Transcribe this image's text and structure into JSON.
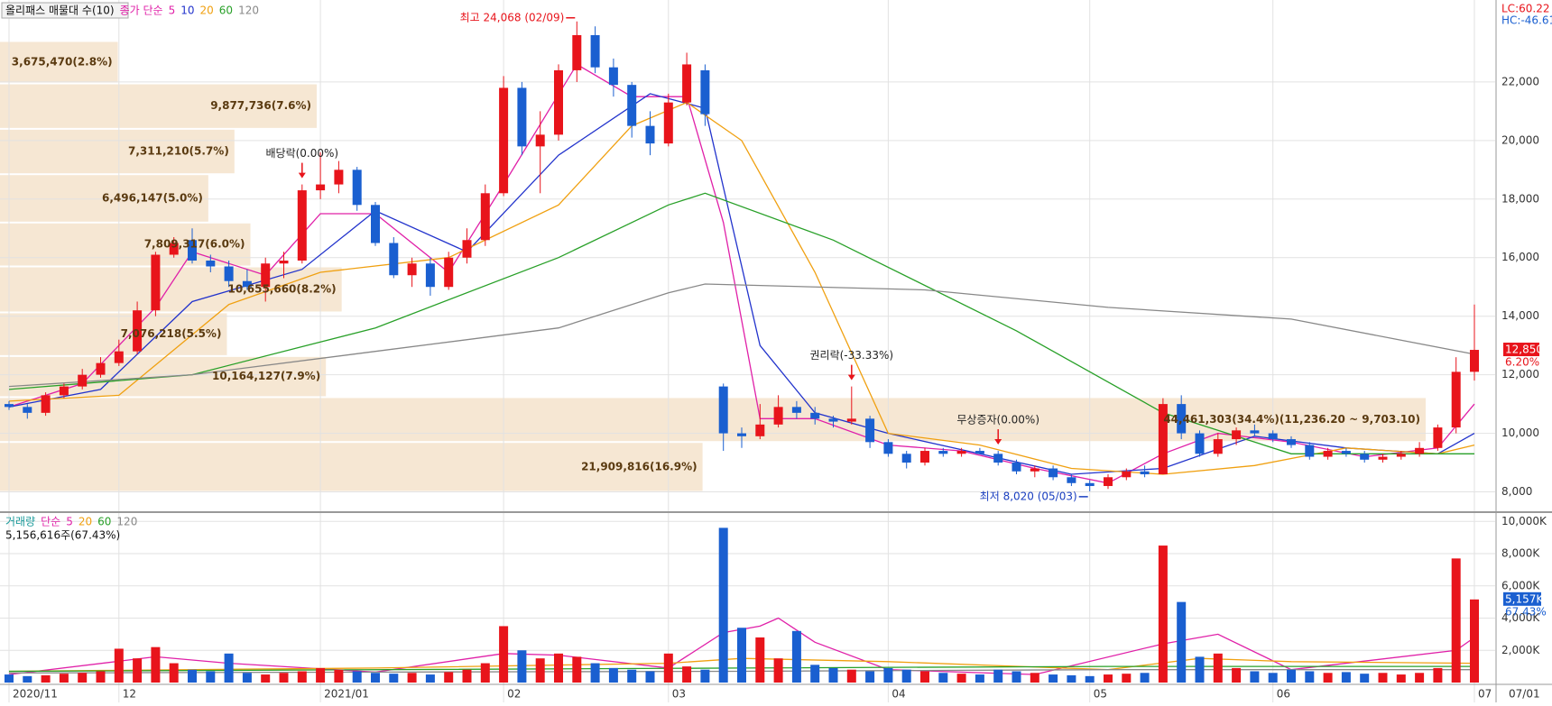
{
  "chart_data": [
    {
      "type": "candlestick",
      "title": "올리패스 매물대 수(10)",
      "legend_prefix": "종가 단순",
      "up_color": "#e8141b",
      "down_color": "#1a5fd0",
      "ylim": [
        7400,
        24800
      ],
      "yticks": [
        {
          "value": 8000,
          "label": "8,000"
        },
        {
          "value": 10000,
          "label": "10,000"
        },
        {
          "value": 12000,
          "label": "12,000"
        },
        {
          "value": 14000,
          "label": "14,000"
        },
        {
          "value": 16000,
          "label": "16,000"
        },
        {
          "value": 18000,
          "label": "18,000"
        },
        {
          "value": 20000,
          "label": "20,000"
        },
        {
          "value": 22000,
          "label": "22,000"
        }
      ],
      "open": [
        11000,
        10900,
        10700,
        11300,
        11600,
        12000,
        12400,
        12800,
        14200,
        16100,
        16600,
        15900,
        15700,
        15200,
        15000,
        15800,
        15900,
        18300,
        18500,
        19000,
        17800,
        16500,
        15400,
        15800,
        15000,
        16000,
        16600,
        18200,
        21800,
        19800,
        20200,
        22400,
        23600,
        22500,
        21900,
        20500,
        19900,
        21300,
        22400,
        11600,
        10000,
        9900,
        10300,
        10900,
        10700,
        10500,
        10400,
        10500,
        9700,
        9300,
        9000,
        9400,
        9300,
        9400,
        9300,
        9000,
        8700,
        8800,
        8500,
        8300,
        8200,
        8500,
        8700,
        8600,
        11000,
        10000,
        9300,
        9800,
        10100,
        10000,
        9800,
        9600,
        9200,
        9400,
        9300,
        9100,
        9200,
        9300,
        9500,
        10200,
        12100
      ],
      "high": [
        11100,
        11000,
        11400,
        11700,
        12200,
        12600,
        13200,
        14500,
        16200,
        16700,
        17000,
        16100,
        15900,
        15600,
        16000,
        16200,
        18500,
        19600,
        19300,
        19100,
        17900,
        16700,
        16000,
        16000,
        16200,
        17000,
        18500,
        22200,
        22000,
        21000,
        22600,
        24068,
        23900,
        22800,
        22000,
        21000,
        21600,
        23000,
        22600,
        11700,
        10200,
        11000,
        11300,
        11100,
        10900,
        10600,
        11600,
        10600,
        9800,
        9400,
        9500,
        9500,
        9500,
        9500,
        9400,
        9100,
        8900,
        8900,
        8600,
        8400,
        8600,
        8800,
        8900,
        11200,
        11300,
        10100,
        10000,
        10200,
        10300,
        10100,
        9900,
        9700,
        9500,
        9500,
        9400,
        9300,
        9400,
        9700,
        10300,
        12600,
        14400
      ],
      "low": [
        10800,
        10500,
        10600,
        11200,
        11500,
        11900,
        12300,
        12700,
        14000,
        16000,
        15800,
        15500,
        15000,
        14900,
        14500,
        15300,
        15800,
        18000,
        18200,
        17600,
        16400,
        15300,
        15000,
        14700,
        14900,
        15800,
        16400,
        18100,
        19500,
        18200,
        20000,
        22000,
        22300,
        21500,
        20100,
        19500,
        19800,
        21200,
        20500,
        9400,
        9500,
        9800,
        10200,
        10500,
        10300,
        10200,
        10300,
        9500,
        9200,
        8800,
        8900,
        9200,
        9200,
        9300,
        8900,
        8600,
        8500,
        8400,
        8200,
        8020,
        8100,
        8400,
        8500,
        8600,
        9800,
        9200,
        9200,
        9600,
        9900,
        9700,
        9500,
        9100,
        9100,
        9200,
        9000,
        9000,
        9100,
        9200,
        9400,
        10000,
        11800
      ],
      "close": [
        10900,
        10700,
        11300,
        11600,
        12000,
        12400,
        12800,
        14200,
        16100,
        16500,
        15900,
        15700,
        15200,
        15000,
        15800,
        15900,
        18300,
        18500,
        19000,
        17800,
        16500,
        15400,
        15800,
        15000,
        16000,
        16600,
        18200,
        21800,
        19800,
        20200,
        22400,
        23600,
        22500,
        21900,
        20500,
        19900,
        21300,
        22600,
        20900,
        10000,
        9900,
        10300,
        10900,
        10700,
        10500,
        10400,
        10500,
        9700,
        9300,
        9000,
        9400,
        9300,
        9400,
        9300,
        9000,
        8700,
        8800,
        8500,
        8300,
        8200,
        8500,
        8700,
        8600,
        11000,
        10000,
        9300,
        9800,
        10100,
        10000,
        9800,
        9600,
        9200,
        9400,
        9300,
        9100,
        9200,
        9300,
        9500,
        10200,
        12100,
        12850
      ],
      "series": [
        {
          "name": "5",
          "color": "#e020a8",
          "x": [
            0,
            4,
            8,
            10,
            14,
            17,
            20,
            24,
            27,
            31,
            34,
            37,
            39,
            41,
            44,
            48,
            52,
            56,
            60,
            63,
            66,
            70,
            74,
            78,
            80
          ],
          "values": [
            10900,
            11700,
            14300,
            16200,
            15400,
            17500,
            17500,
            15500,
            18500,
            22600,
            21500,
            21500,
            17200,
            10500,
            10500,
            9600,
            9400,
            8800,
            8300,
            9300,
            10000,
            9700,
            9200,
            9500,
            11000
          ]
        },
        {
          "name": "10",
          "color": "#2233cc",
          "x": [
            0,
            5,
            10,
            16,
            20,
            25,
            30,
            35,
            38,
            41,
            44,
            48,
            53,
            58,
            63,
            68,
            73,
            78,
            80
          ],
          "values": [
            10900,
            11500,
            14500,
            15600,
            17600,
            16200,
            19500,
            21600,
            21100,
            13000,
            10700,
            10000,
            9300,
            8600,
            8800,
            9900,
            9500,
            9300,
            10000
          ]
        },
        {
          "name": "20",
          "color": "#f0a010",
          "x": [
            0,
            6,
            12,
            17,
            24,
            30,
            34,
            37,
            40,
            44,
            48,
            53,
            58,
            63,
            68,
            73,
            78,
            80
          ],
          "values": [
            11100,
            11300,
            14400,
            15500,
            16000,
            17800,
            20500,
            21300,
            20000,
            15500,
            10000,
            9600,
            8800,
            8600,
            8900,
            9500,
            9300,
            9600
          ]
        },
        {
          "name": "60",
          "color": "#28a028",
          "x": [
            0,
            10,
            20,
            30,
            36,
            38,
            45,
            55,
            63,
            70,
            75,
            80
          ],
          "values": [
            11500,
            12000,
            13600,
            16000,
            17800,
            18200,
            16600,
            13500,
            10700,
            9300,
            9300,
            9300
          ]
        },
        {
          "name": "120",
          "color": "#888888",
          "x": [
            0,
            10,
            20,
            30,
            36,
            38,
            50,
            60,
            70,
            80
          ],
          "values": [
            11600,
            12000,
            12800,
            13600,
            14800,
            15100,
            14900,
            14300,
            13900,
            12700
          ]
        }
      ],
      "volume_profile": [
        {
          "high": 23400,
          "low": 21950,
          "volume": 3675470,
          "pct": 2.8,
          "label": "3,675,470(2.8%)"
        },
        {
          "high": 21950,
          "low": 20400,
          "volume": 9877736,
          "pct": 7.6,
          "label": "9,877,736(7.6%)"
        },
        {
          "high": 20400,
          "low": 18850,
          "volume": 7311210,
          "pct": 5.7,
          "label": "7,311,210(5.7%)"
        },
        {
          "high": 18850,
          "low": 17200,
          "volume": 6496147,
          "pct": 5.0,
          "label": "6,496,147(5.0%)"
        },
        {
          "high": 17200,
          "low": 15700,
          "volume": 7809317,
          "pct": 6.0,
          "label": "7,809,317(6.0%)"
        },
        {
          "high": 15700,
          "low": 14130,
          "volume": 10655660,
          "pct": 8.2,
          "label": "10,655,660(8.2%)"
        },
        {
          "high": 14130,
          "low": 12640,
          "volume": 7076218,
          "pct": 5.5,
          "label": "7,076,218(5.5%)"
        },
        {
          "high": 12640,
          "low": 11236.2,
          "volume": 10164127,
          "pct": 7.9,
          "label": "10,164,127(7.9%)"
        },
        {
          "high": 11236.2,
          "low": 9703.1,
          "volume": 44461303,
          "pct": 34.4,
          "label": "44,461,303(34.4%)(11,236.20 ~ 9,703.10)"
        },
        {
          "high": 9703.1,
          "low": 8000,
          "volume": 21909816,
          "pct": 16.9,
          "label": "21,909,816(16.9%)"
        }
      ],
      "events": [
        {
          "text": "배당락(0.00%)",
          "x": 16
        },
        {
          "text": "권리락(-33.33%)",
          "x": 46
        },
        {
          "text": "무상증자(0.00%)",
          "x": 54
        }
      ],
      "high_mark": {
        "text": "최고 24,068 (02/09)",
        "x": 31,
        "value": 24068
      },
      "low_mark": {
        "text": "최저 8,020 (05/03)",
        "x": 59,
        "value": 8020
      },
      "last_price": {
        "value": 12850,
        "label": "12,850",
        "change": 6.2,
        "change_label": "6.20%"
      },
      "lc": "LC:60.22",
      "hc": "HC:-46.61"
    },
    {
      "type": "bar",
      "legend_title": "거래량",
      "legend_prefix": "단순",
      "info": "5,156,616주(67.43%)",
      "date_label": "07/01",
      "categories": [
        "2020/11",
        null,
        null,
        null,
        null,
        null,
        "12",
        null,
        null,
        null,
        null,
        null,
        null,
        null,
        null,
        null,
        null,
        "2021/01",
        null,
        null,
        null,
        null,
        null,
        null,
        null,
        null,
        null,
        "02",
        null,
        null,
        null,
        null,
        null,
        null,
        null,
        null,
        "03",
        null,
        null,
        null,
        null,
        null,
        null,
        null,
        null,
        null,
        null,
        null,
        "04",
        null,
        null,
        null,
        null,
        null,
        null,
        null,
        null,
        null,
        null,
        "05",
        null,
        null,
        null,
        null,
        null,
        null,
        null,
        null,
        null,
        "06",
        null,
        null,
        null,
        null,
        null,
        null,
        null,
        null,
        null,
        null,
        "07"
      ],
      "values": [
        500,
        400,
        450,
        550,
        600,
        700,
        2100,
        1500,
        2200,
        1200,
        800,
        700,
        1800,
        600,
        500,
        600,
        700,
        900,
        800,
        700,
        600,
        550,
        600,
        500,
        650,
        800,
        1200,
        3500,
        2000,
        1500,
        1800,
        1600,
        1200,
        900,
        800,
        700,
        1800,
        1000,
        800,
        9600,
        3400,
        2800,
        1500,
        3200,
        1100,
        900,
        800,
        700,
        900,
        800,
        700,
        600,
        550,
        500,
        800,
        700,
        600,
        500,
        450,
        400,
        500,
        550,
        600,
        8500,
        5000,
        1600,
        1800,
        900,
        700,
        600,
        800,
        700,
        600,
        650,
        550,
        600,
        500,
        600,
        900,
        7700,
        5157
      ],
      "ylim": [
        0,
        10350
      ],
      "yticks": [
        {
          "value": 2000,
          "label": "2,000K"
        },
        {
          "value": 4000,
          "label": "4,000K"
        },
        {
          "value": 6000,
          "label": "6,000K"
        },
        {
          "value": 8000,
          "label": "8,000K"
        },
        {
          "value": 10000,
          "label": "10,000K"
        }
      ],
      "series": [
        {
          "name": "5",
          "color": "#e020a8",
          "x": [
            0,
            8,
            12,
            20,
            27,
            30,
            36,
            39,
            41,
            42,
            44,
            48,
            56,
            63,
            64,
            66,
            70,
            79,
            80
          ],
          "values": [
            500,
            1600,
            1200,
            650,
            1800,
            1700,
            900,
            3100,
            3500,
            4000,
            2500,
            800,
            500,
            2400,
            2600,
            3000,
            800,
            2000,
            2800
          ]
        },
        {
          "name": "20",
          "color": "#f0a010",
          "x": [
            0,
            20,
            36,
            40,
            48,
            60,
            65,
            70,
            80
          ],
          "values": [
            700,
            900,
            1200,
            1500,
            1300,
            800,
            1500,
            1300,
            1200
          ]
        },
        {
          "name": "60",
          "color": "#28a028",
          "x": [
            0,
            40,
            60,
            80
          ],
          "values": [
            700,
            900,
            1000,
            1000
          ]
        },
        {
          "name": "120",
          "color": "#888888",
          "x": [
            0,
            40,
            60,
            80
          ],
          "values": [
            600,
            700,
            800,
            800
          ]
        }
      ],
      "last_volume": {
        "value": 5157,
        "label": "5,157K",
        "ratio_label": "67.43%"
      }
    }
  ]
}
